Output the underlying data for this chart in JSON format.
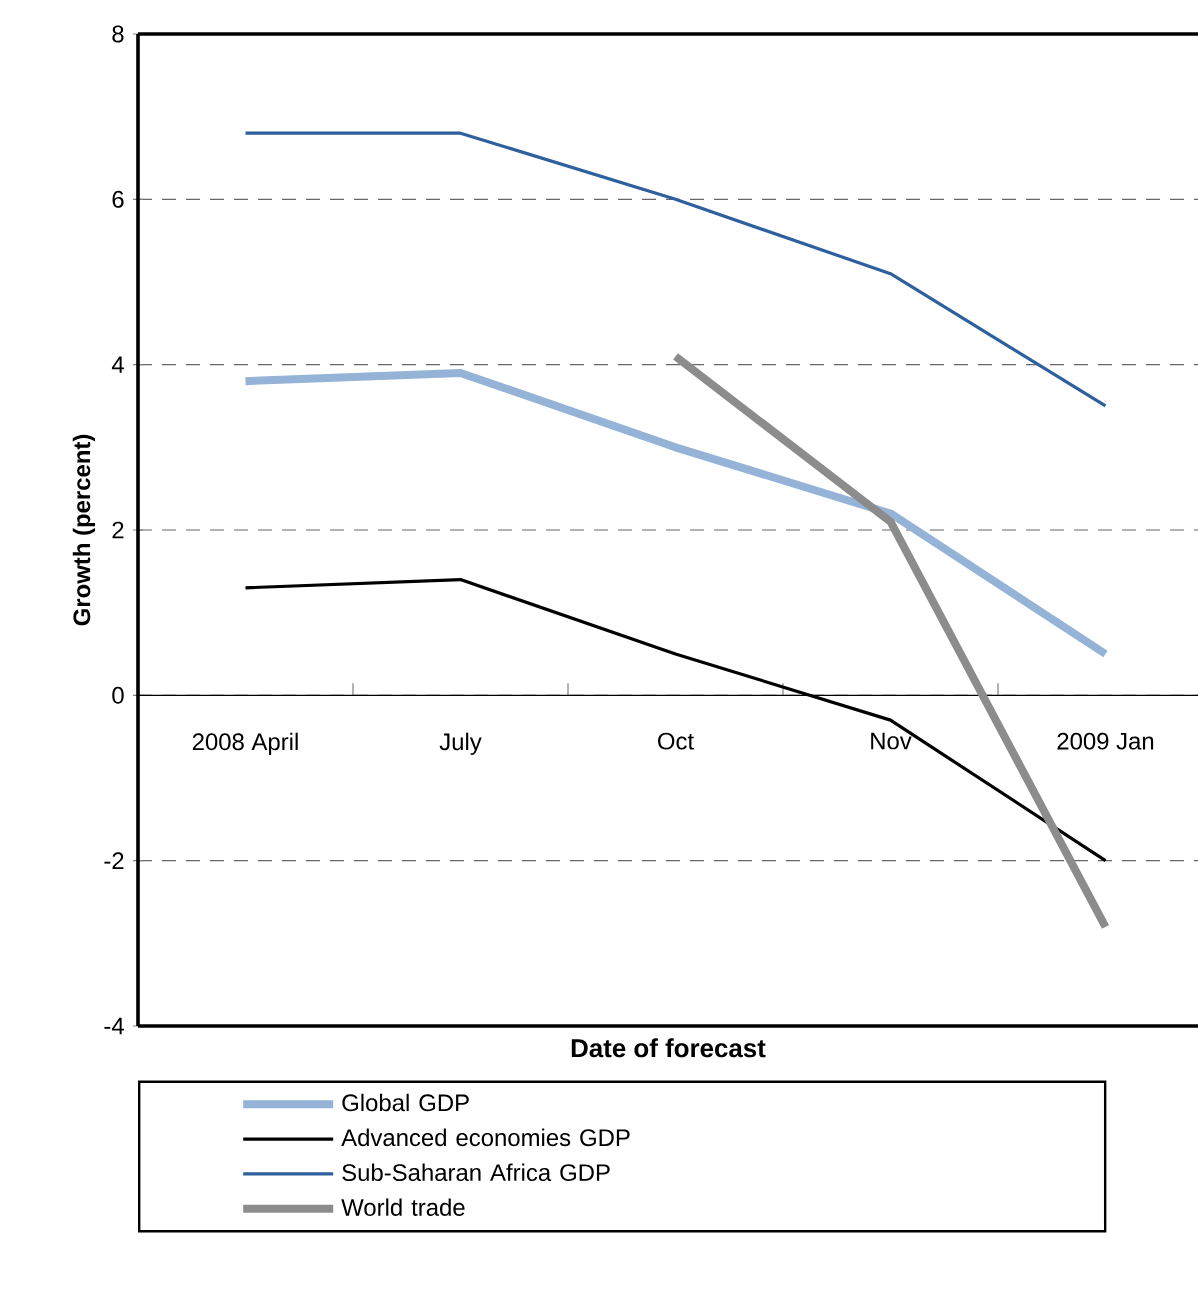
{
  "chart_data": {
    "type": "line",
    "xlabel": "Date of forecast",
    "ylabel": "Growth (percent)",
    "categories": [
      "2008 April",
      "July",
      "Oct",
      "Nov",
      "2009 Jan"
    ],
    "series": [
      {
        "name": "Global GDP",
        "color": "#95b3d7",
        "values": [
          3.8,
          3.9,
          3.0,
          2.2,
          0.5
        ]
      },
      {
        "name": "Advanced economies GDP",
        "color": "#000000",
        "values": [
          1.3,
          1.4,
          0.5,
          -0.3,
          -2.0
        ]
      },
      {
        "name": "Sub-Saharan Africa GDP",
        "color": "#2e5f9e",
        "values": [
          6.8,
          6.8,
          6.0,
          5.1,
          3.5
        ]
      },
      {
        "name": "World trade",
        "color": "#8c8c8c",
        "values": [
          null,
          null,
          4.1,
          2.1,
          -2.8
        ]
      }
    ],
    "ylim": [
      -4,
      8
    ],
    "yticks": [
      -4,
      -2,
      0,
      2,
      4,
      6,
      8
    ],
    "grid": "y",
    "legend": "bottom",
    "line_style": "solid",
    "marker": "none"
  }
}
